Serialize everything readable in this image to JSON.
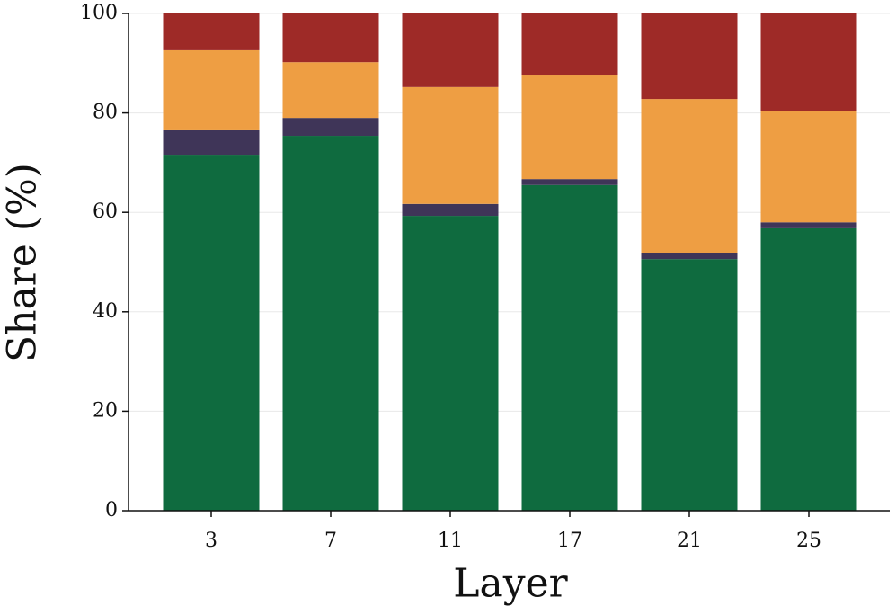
{
  "chart_data": {
    "type": "stacked_bar",
    "x_label": "Layer",
    "y_label": "Share (%)",
    "categories": [
      "3",
      "7",
      "11",
      "17",
      "21",
      "25"
    ],
    "series": [
      {
        "color": "#0f6b3f",
        "values": [
          71.6,
          75.4,
          59.3,
          65.5,
          50.6,
          56.8
        ]
      },
      {
        "color": "#3f3558",
        "values": [
          4.9,
          3.6,
          2.4,
          1.2,
          1.3,
          1.2
        ]
      },
      {
        "color": "#ee9e43",
        "values": [
          16.1,
          11.2,
          23.5,
          21.0,
          30.9,
          22.3
        ]
      },
      {
        "color": "#9e2a27",
        "values": [
          7.4,
          9.8,
          14.8,
          12.3,
          17.2,
          19.7
        ]
      }
    ],
    "ylim": [
      0,
      100
    ],
    "yticks": [
      0,
      20,
      40,
      60,
      80,
      100
    ],
    "grid": true
  }
}
